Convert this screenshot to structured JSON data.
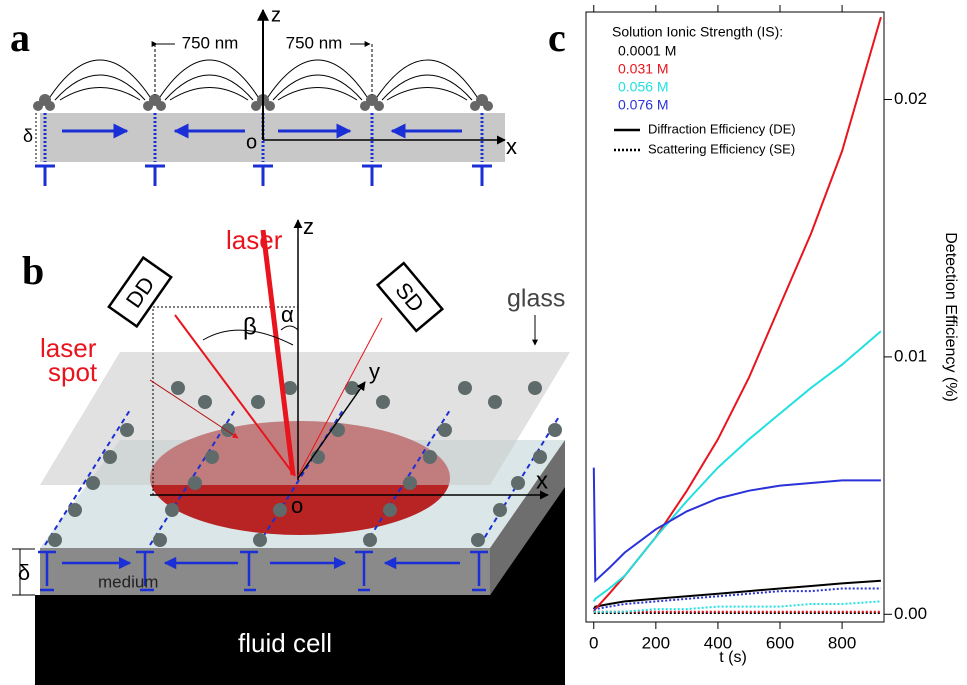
{
  "panel_a": {
    "label": "a",
    "spacing_left": "750 nm",
    "spacing_right": "750 nm",
    "z": "z",
    "x": "x",
    "origin": "o",
    "thickness": "δ"
  },
  "panel_b": {
    "label": "b",
    "laser": "laser",
    "z": "z",
    "diffraction_detector": "DD",
    "scattering_detector": "SD",
    "glass": "glass",
    "laser_spot": [
      "laser",
      "spot"
    ],
    "beta": "β",
    "alpha": "α",
    "y": "y",
    "x": "x",
    "origin": "o",
    "thickness": "δ",
    "medium": "medium",
    "fluid_cell": "fluid cell"
  },
  "chart_data": {
    "type": "line",
    "panel_label": "c",
    "legend_title": "Solution Ionic Strength (IS):",
    "style_legend": [
      "Diffraction Efficiency (DE)",
      "Scattering Efficiency (SE)"
    ],
    "x_label": "t (s)",
    "y_label": "Detection Efficiency (%)",
    "x": [
      0,
      5,
      50,
      100,
      200,
      300,
      400,
      500,
      600,
      700,
      800,
      925
    ],
    "series": [
      {
        "name": "0.0001 M",
        "color": "#000000",
        "values": [
          0.0002,
          0.0003,
          0.0004,
          0.0005,
          0.0006,
          0.0007,
          0.0008,
          0.0009,
          0.001,
          0.0011,
          0.0012,
          0.0013
        ],
        "se_values": [
          5e-05,
          5e-05,
          5e-05,
          5e-05,
          5e-05,
          5e-05,
          5e-05,
          5e-05,
          5e-05,
          5e-05,
          5e-05,
          5e-05
        ]
      },
      {
        "name": "0.031 M",
        "color": "#e8141e",
        "values": [
          0.0001,
          0.0002,
          0.0008,
          0.0015,
          0.003,
          0.0048,
          0.0068,
          0.0092,
          0.012,
          0.0148,
          0.018,
          0.0232
        ],
        "se_values": [
          0.0001,
          0.0001,
          0.0001,
          0.0001,
          0.0001,
          0.0001,
          0.0001,
          0.0001,
          0.0001,
          0.0001,
          0.0001,
          0.0001
        ]
      },
      {
        "name": "0.056 M",
        "color": "#22e0e0",
        "values": [
          0.0005,
          0.0006,
          0.001,
          0.0015,
          0.003,
          0.0044,
          0.0057,
          0.0068,
          0.0078,
          0.0088,
          0.0097,
          0.011
        ],
        "se_values": [
          0.0001,
          0.0001,
          0.0001,
          0.0001,
          0.0002,
          0.0002,
          0.0003,
          0.0003,
          0.0003,
          0.0004,
          0.0004,
          0.0005
        ]
      },
      {
        "name": "0.076 M",
        "color": "#2a32d8",
        "values": [
          0.0057,
          0.0013,
          0.0018,
          0.0024,
          0.0033,
          0.004,
          0.0045,
          0.0048,
          0.005,
          0.0051,
          0.0052,
          0.0052
        ],
        "se_values": [
          0.0002,
          0.0002,
          0.0003,
          0.0004,
          0.0005,
          0.0006,
          0.0007,
          0.0008,
          0.0009,
          0.0009,
          0.001,
          0.001
        ]
      }
    ],
    "xlim": [
      -25,
      935
    ],
    "ylim": [
      -0.0003,
      0.0234
    ],
    "xticks": [
      0,
      200,
      400,
      600,
      800
    ],
    "yticks": [
      {
        "value": 0,
        "label": "0.00"
      },
      0.01,
      0.02
    ]
  }
}
